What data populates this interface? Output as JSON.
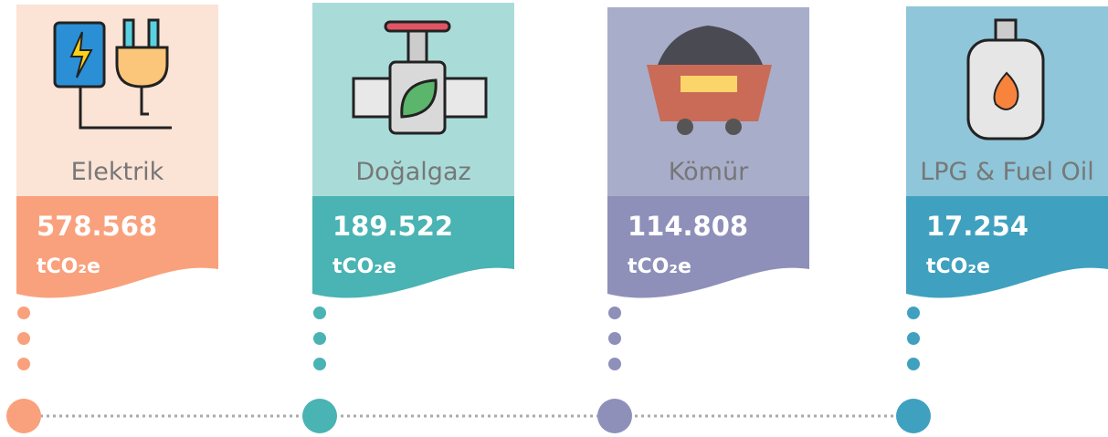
{
  "items": [
    {
      "label": "Elektrik",
      "value": "578.568",
      "unit": "tCO₂e"
    },
    {
      "label": "Doğalgaz",
      "value": "189.522",
      "unit": "tCO₂e"
    },
    {
      "label": "Kömür",
      "value": "114.808",
      "unit": "tCO₂e"
    },
    {
      "label": "LPG & Fuel Oil",
      "value": "17.254",
      "unit": "tCO₂e"
    }
  ]
}
